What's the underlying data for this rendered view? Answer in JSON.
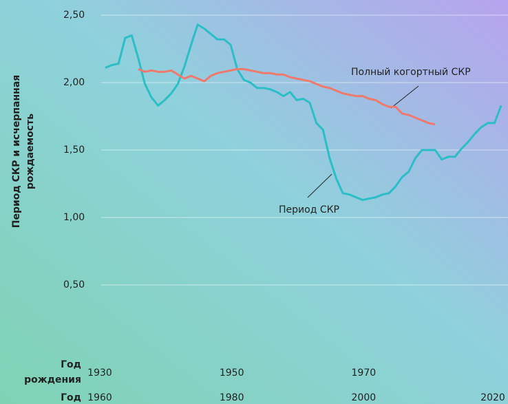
{
  "chart_data": {
    "type": "line",
    "ylabel": [
      "Период СКР и исчерпанная",
      "рождаемость"
    ],
    "xlabel": "Год",
    "x2label": [
      "Год",
      "рождения"
    ],
    "xlim": [
      1960,
      2020
    ],
    "xticks": [
      1960,
      1980,
      2000,
      2020
    ],
    "x2lim": [
      1930,
      1990
    ],
    "x2ticks": [
      1930,
      1950,
      1970
    ],
    "ylim": [
      0,
      2.5
    ],
    "yticks": [
      {
        "value": 0.5,
        "label": "0,50"
      },
      {
        "value": 1,
        "label": "1,00"
      },
      {
        "value": 1.5,
        "label": "1,50"
      },
      {
        "value": 2,
        "label": "2,00"
      },
      {
        "value": 2.5,
        "label": "2,50"
      }
    ],
    "grid": true,
    "series": [
      {
        "name": "Период СКР",
        "color": "#2bbec6",
        "x": [
          1960,
          1961,
          1962,
          1963,
          1964,
          1965,
          1966,
          1967,
          1968,
          1969,
          1970,
          1971,
          1972,
          1973,
          1974,
          1975,
          1976,
          1977,
          1978,
          1979,
          1980,
          1981,
          1982,
          1983,
          1984,
          1985,
          1986,
          1987,
          1988,
          1989,
          1990,
          1991,
          1992,
          1993,
          1994,
          1995,
          1996,
          1997,
          1998,
          1999,
          2000,
          2001,
          2002,
          2003,
          2004,
          2005,
          2006,
          2007,
          2008,
          2009,
          2010,
          2011,
          2012,
          2013,
          2014,
          2015,
          2016,
          2017,
          2018,
          2019,
          2020
        ],
        "values": [
          2.11,
          2.13,
          2.14,
          2.33,
          2.35,
          2.18,
          1.99,
          1.89,
          1.83,
          1.87,
          1.92,
          1.99,
          2.12,
          2.28,
          2.43,
          2.4,
          2.36,
          2.32,
          2.32,
          2.28,
          2.1,
          2.02,
          2.0,
          1.96,
          1.96,
          1.95,
          1.93,
          1.9,
          1.93,
          1.87,
          1.88,
          1.85,
          1.7,
          1.65,
          1.44,
          1.29,
          1.18,
          1.17,
          1.15,
          1.13,
          1.14,
          1.15,
          1.17,
          1.18,
          1.23,
          1.3,
          1.34,
          1.44,
          1.5,
          1.5,
          1.5,
          1.43,
          1.45,
          1.45,
          1.51,
          1.56,
          1.62,
          1.67,
          1.7,
          1.7,
          1.83
        ]
      },
      {
        "name": "Полный когортный СКР",
        "color": "#ef7a6c",
        "axis": "x2",
        "x": [
          1935,
          1936,
          1937,
          1938,
          1939,
          1940,
          1941,
          1942,
          1943,
          1944,
          1945,
          1946,
          1947,
          1948,
          1949,
          1950,
          1951,
          1952,
          1953,
          1954,
          1955,
          1956,
          1957,
          1958,
          1959,
          1960,
          1961,
          1962,
          1963,
          1964,
          1965,
          1966,
          1967,
          1968,
          1969,
          1970,
          1971,
          1972,
          1973,
          1974,
          1975,
          1976,
          1977,
          1978,
          1979,
          1980
        ],
        "values": [
          2.1,
          2.08,
          2.09,
          2.08,
          2.08,
          2.09,
          2.06,
          2.03,
          2.05,
          2.03,
          2.01,
          2.05,
          2.07,
          2.08,
          2.09,
          2.1,
          2.1,
          2.09,
          2.08,
          2.07,
          2.07,
          2.06,
          2.06,
          2.04,
          2.03,
          2.02,
          2.01,
          1.99,
          1.97,
          1.96,
          1.94,
          1.92,
          1.91,
          1.9,
          1.9,
          1.88,
          1.87,
          1.84,
          1.82,
          1.82,
          1.77,
          1.76,
          1.74,
          1.72,
          1.7,
          1.69
        ]
      }
    ]
  }
}
